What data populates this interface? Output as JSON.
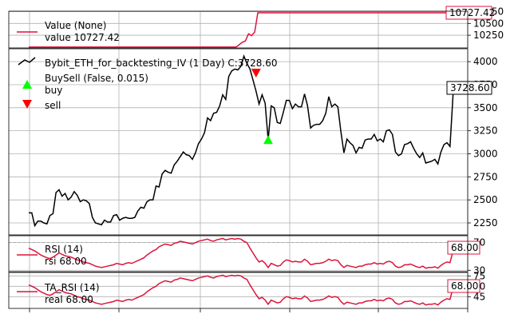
{
  "colors": {
    "value": "#dc143c",
    "price": "#000000",
    "buy": "#00ff00",
    "sell": "#ff0000",
    "grid": "#b0b0b0"
  },
  "chart_data": [
    {
      "type": "line",
      "panel": "value",
      "legend": {
        "title": "Value (None)",
        "entries": [
          "value 10727.42"
        ]
      },
      "series": [
        {
          "name": "value",
          "values": [
            10000,
            10000,
            10000,
            10000,
            10000,
            10000,
            10000,
            10000,
            10000,
            10000,
            10000,
            10000,
            10000,
            10000,
            10000,
            10000,
            10000,
            10000,
            10000,
            10000,
            10000,
            10000,
            10000,
            10000,
            10000,
            10000,
            10000,
            10000,
            10000,
            10000,
            10000,
            10000,
            10000,
            10000,
            10000,
            10000,
            10000,
            10000,
            10000,
            10000,
            10000,
            10000,
            10000,
            10000,
            10000,
            10000,
            10000,
            10000,
            10000,
            10000,
            10000,
            10000,
            10000,
            10000,
            10000,
            10000,
            10000,
            10000,
            10000,
            10000,
            10000,
            10000,
            10000,
            10000,
            10000,
            10000,
            10000,
            10000,
            10050,
            10100,
            10130,
            10280,
            10240,
            10320,
            10727,
            10727,
            10727,
            10727,
            10727,
            10727,
            10727,
            10727,
            10727,
            10727,
            10727,
            10727,
            10727,
            10727,
            10727,
            10727,
            10727,
            10727,
            10727,
            10727,
            10727,
            10727,
            10727,
            10727,
            10727,
            10727,
            10727,
            10727,
            10727,
            10727,
            10727,
            10727,
            10727,
            10727,
            10727,
            10727,
            10727,
            10727,
            10727,
            10727,
            10727,
            10727,
            10727,
            10727,
            10727,
            10727,
            10727,
            10727,
            10727,
            10727,
            10727,
            10727,
            10727,
            10727,
            10727,
            10727,
            10727,
            10727,
            10727,
            10727,
            10727,
            10727,
            10727,
            10727,
            10727,
            10727,
            10727.42
          ]
        }
      ],
      "ylim": [
        9980,
        10760
      ],
      "yticks": [
        "10250",
        "10500",
        "10750"
      ],
      "last_label": "10727.42"
    },
    {
      "type": "line",
      "panel": "price",
      "legend": {
        "title": "Bybit_ETH_for_backtesting_IV (1 Day) C:3728.60",
        "entries": [
          "BuySell (False, 0.015)",
          "buy",
          "sell"
        ]
      },
      "series": [
        {
          "name": "Bybit_ETH_for_backtesting_IV",
          "values": [
            2360,
            2360,
            2220,
            2270,
            2270,
            2250,
            2240,
            2330,
            2350,
            2580,
            2610,
            2540,
            2570,
            2500,
            2530,
            2590,
            2550,
            2480,
            2500,
            2490,
            2460,
            2310,
            2250,
            2240,
            2230,
            2280,
            2260,
            2260,
            2330,
            2340,
            2280,
            2300,
            2310,
            2300,
            2300,
            2310,
            2380,
            2420,
            2410,
            2480,
            2500,
            2500,
            2650,
            2640,
            2780,
            2820,
            2800,
            2790,
            2880,
            2920,
            2970,
            3020,
            2990,
            2980,
            2940,
            3010,
            3110,
            3160,
            3230,
            3390,
            3360,
            3440,
            3450,
            3520,
            3640,
            3590,
            3840,
            3900,
            3920,
            3910,
            3950,
            4060,
            3980,
            3920,
            3800,
            3680,
            3540,
            3640,
            3550,
            3150,
            3520,
            3500,
            3340,
            3330,
            3450,
            3580,
            3580,
            3490,
            3540,
            3510,
            3510,
            3650,
            3520,
            3280,
            3310,
            3320,
            3320,
            3360,
            3440,
            3620,
            3510,
            3540,
            3510,
            3240,
            3010,
            3160,
            3120,
            3090,
            3010,
            3070,
            3060,
            3150,
            3160,
            3160,
            3210,
            3140,
            3160,
            3130,
            3250,
            3260,
            3210,
            3020,
            2980,
            3000,
            3100,
            3110,
            3130,
            3060,
            3000,
            2960,
            3010,
            2900,
            2910,
            2920,
            2940,
            2890,
            3020,
            3100,
            3120,
            3080,
            3640,
            3740,
            3720,
            3728.6
          ]
        }
      ],
      "buy_markers": [
        {
          "index": 79,
          "value": 3150
        }
      ],
      "sell_markers": [
        {
          "index": 75,
          "value": 3880
        },
        {
          "index": 142,
          "value": 3720
        }
      ],
      "ylim": [
        2120,
        4140
      ],
      "yticks": [
        "2250",
        "2500",
        "2750",
        "3000",
        "3250",
        "3500",
        "3750",
        "4000"
      ],
      "last_label": "3728.60"
    },
    {
      "type": "line",
      "panel": "rsi",
      "legend": {
        "title": "RSI (14)",
        "entries": [
          "rsi 68.00"
        ]
      },
      "series": [
        {
          "name": "rsi",
          "values": [
            62,
            60,
            58,
            55,
            52,
            50,
            48,
            47,
            49,
            52,
            55,
            53,
            51,
            50,
            49,
            47,
            45,
            44,
            42,
            41,
            40,
            38,
            36,
            35,
            34,
            35,
            36,
            37,
            38,
            40,
            39,
            38,
            40,
            41,
            40,
            42,
            44,
            46,
            48,
            52,
            55,
            58,
            60,
            64,
            66,
            68,
            67,
            66,
            69,
            70,
            72,
            71,
            70,
            69,
            68,
            70,
            72,
            73,
            74,
            75,
            73,
            72,
            74,
            75,
            76,
            74,
            75,
            76,
            75,
            76,
            75,
            72,
            70,
            62,
            55,
            48,
            42,
            44,
            40,
            34,
            40,
            38,
            36,
            37,
            42,
            45,
            44,
            42,
            43,
            42,
            42,
            46,
            43,
            38,
            39,
            40,
            40,
            41,
            43,
            46,
            44,
            45,
            44,
            38,
            34,
            37,
            36,
            35,
            34,
            36,
            36,
            38,
            39,
            39,
            41,
            39,
            40,
            39,
            42,
            43,
            41,
            36,
            34,
            35,
            38,
            38,
            39,
            37,
            35,
            34,
            36,
            33,
            34,
            34,
            35,
            33,
            37,
            40,
            42,
            41,
            58,
            62,
            60,
            68
          ]
        }
      ],
      "ylim": [
        28,
        80
      ],
      "yticks": [
        "30",
        "70"
      ],
      "reference_lines": [
        70
      ],
      "last_label": "68.00"
    },
    {
      "type": "line",
      "panel": "ta_rsi",
      "legend": {
        "title": "TA_RSI (14)",
        "entries": [
          "real 68.00"
        ]
      },
      "series": [
        {
          "name": "real",
          "values": [
            62,
            60,
            58,
            55,
            52,
            50,
            48,
            47,
            49,
            52,
            55,
            53,
            51,
            50,
            49,
            47,
            45,
            44,
            42,
            41,
            40,
            38,
            36,
            35,
            34,
            35,
            36,
            37,
            38,
            40,
            39,
            38,
            40,
            41,
            40,
            42,
            44,
            46,
            48,
            52,
            55,
            58,
            60,
            64,
            66,
            68,
            67,
            66,
            69,
            70,
            72,
            71,
            70,
            69,
            68,
            70,
            72,
            73,
            74,
            75,
            73,
            72,
            74,
            75,
            76,
            74,
            75,
            76,
            75,
            76,
            75,
            72,
            70,
            62,
            55,
            48,
            42,
            44,
            40,
            34,
            40,
            38,
            36,
            37,
            42,
            45,
            44,
            42,
            43,
            42,
            42,
            46,
            43,
            38,
            39,
            40,
            40,
            41,
            43,
            46,
            44,
            45,
            44,
            38,
            34,
            37,
            36,
            35,
            34,
            36,
            36,
            38,
            39,
            39,
            41,
            39,
            40,
            39,
            42,
            43,
            41,
            36,
            34,
            35,
            38,
            38,
            39,
            37,
            35,
            34,
            36,
            33,
            34,
            34,
            35,
            33,
            37,
            40,
            42,
            41,
            58,
            62,
            60,
            68
          ]
        }
      ],
      "ylim": [
        28,
        80
      ],
      "yticks": [
        "45",
        "60",
        "75"
      ],
      "last_label": "68.00"
    }
  ]
}
